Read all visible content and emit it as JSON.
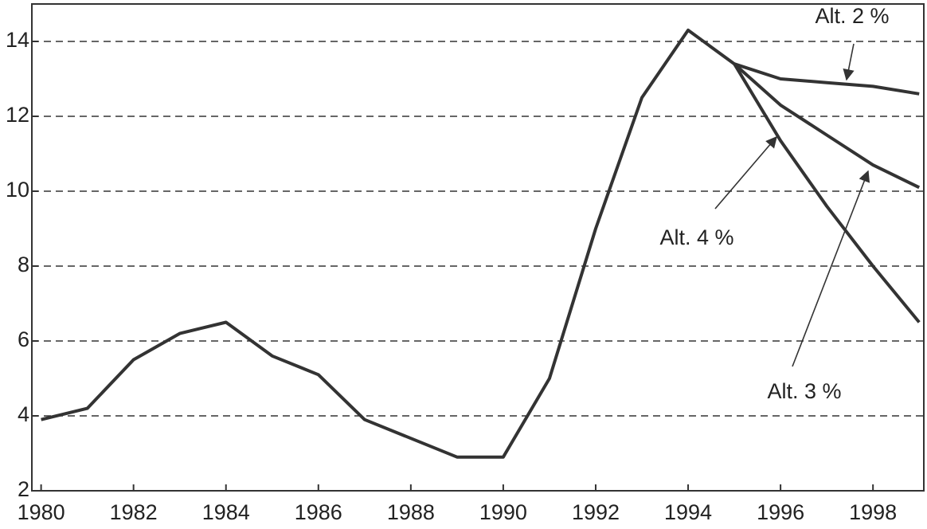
{
  "chart_data": {
    "type": "line",
    "x": [
      1980,
      1981,
      1982,
      1983,
      1984,
      1985,
      1986,
      1987,
      1988,
      1989,
      1990,
      1991,
      1992,
      1993,
      1994,
      1995,
      1996,
      1997,
      1998,
      1999
    ],
    "series": [
      {
        "color": "#333333",
        "values": [
          3.9,
          4.2,
          5.5,
          6.2,
          6.5,
          5.6,
          5.1,
          3.9,
          3.4,
          2.9,
          2.9,
          5.0,
          9.0,
          12.5,
          14.3,
          13.4,
          null,
          null,
          null,
          null
        ]
      },
      {
        "name": "Alt. 2 %",
        "color": "#333333",
        "values": [
          null,
          null,
          null,
          null,
          null,
          null,
          null,
          null,
          null,
          null,
          null,
          null,
          null,
          null,
          null,
          13.4,
          13.0,
          12.9,
          12.8,
          12.6
        ]
      },
      {
        "name": "Alt. 3 %",
        "color": "#333333",
        "values": [
          null,
          null,
          null,
          null,
          null,
          null,
          null,
          null,
          null,
          null,
          null,
          null,
          null,
          null,
          null,
          13.4,
          12.3,
          11.5,
          10.7,
          10.1
        ]
      },
      {
        "name": "Alt. 4 %",
        "color": "#333333",
        "values": [
          null,
          null,
          null,
          null,
          null,
          null,
          null,
          null,
          null,
          null,
          null,
          null,
          null,
          null,
          null,
          13.4,
          11.35,
          9.6,
          8.0,
          6.5
        ]
      }
    ],
    "xlim": [
      1979.8,
      1999.1
    ],
    "xticks": [
      1980,
      1982,
      1984,
      1986,
      1988,
      1990,
      1992,
      1994,
      1996,
      1998
    ],
    "ylim": [
      2,
      15
    ],
    "yticks": [
      2,
      4,
      6,
      8,
      10,
      12,
      14
    ],
    "grid": true
  }
}
